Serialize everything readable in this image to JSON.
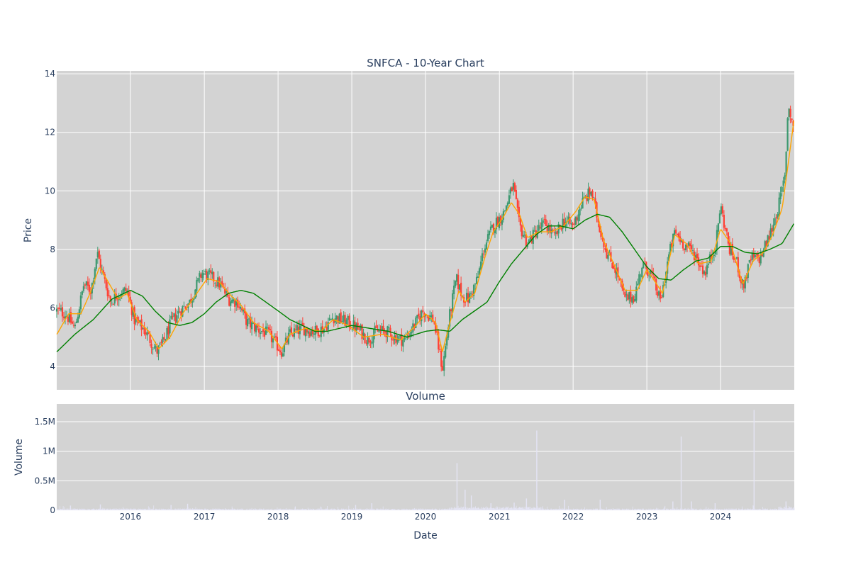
{
  "chart_data": [
    {
      "type": "candlestick",
      "title": "SNFCA - 10-Year Chart",
      "ylabel": "Price",
      "xlim": [
        "2015-01-01",
        "2024-12-31"
      ],
      "ylim": [
        3.2,
        14.1
      ],
      "y_ticks": [
        4,
        6,
        8,
        10,
        12,
        14
      ],
      "grid": true,
      "up_color": "#3d9970",
      "down_color": "#ff4136",
      "plot_background": "#d3d3d3",
      "approx_close_path": [
        [
          "2015-01-02",
          5.9
        ],
        [
          "2015-02-15",
          5.8
        ],
        [
          "2015-04-01",
          5.3
        ],
        [
          "2015-05-15",
          6.8
        ],
        [
          "2015-06-20",
          6.6
        ],
        [
          "2015-07-20",
          7.9
        ],
        [
          "2015-08-15",
          7.2
        ],
        [
          "2015-09-25",
          6.2
        ],
        [
          "2015-11-01",
          6.5
        ],
        [
          "2015-12-15",
          6.6
        ],
        [
          "2016-01-20",
          5.6
        ],
        [
          "2016-03-15",
          5.2
        ],
        [
          "2016-05-10",
          4.5
        ],
        [
          "2016-06-10",
          4.8
        ],
        [
          "2016-07-20",
          5.5
        ],
        [
          "2016-09-01",
          5.9
        ],
        [
          "2016-10-20",
          6.2
        ],
        [
          "2016-12-20",
          7.2
        ],
        [
          "2017-02-15",
          7.0
        ],
        [
          "2017-03-20",
          6.8
        ],
        [
          "2017-05-01",
          6.3
        ],
        [
          "2017-06-15",
          6.2
        ],
        [
          "2017-08-01",
          5.5
        ],
        [
          "2017-09-15",
          5.3
        ],
        [
          "2017-11-15",
          5.1
        ],
        [
          "2018-01-20",
          4.5
        ],
        [
          "2018-03-01",
          5.1
        ],
        [
          "2018-05-01",
          5.3
        ],
        [
          "2018-07-01",
          5.2
        ],
        [
          "2018-08-15",
          5.3
        ],
        [
          "2018-10-01",
          5.7
        ],
        [
          "2018-12-15",
          5.5
        ],
        [
          "2019-02-15",
          5.2
        ],
        [
          "2019-03-20",
          4.9
        ],
        [
          "2019-05-01",
          5.2
        ],
        [
          "2019-06-20",
          5.2
        ],
        [
          "2019-08-01",
          5.0
        ],
        [
          "2019-09-20",
          4.9
        ],
        [
          "2019-11-15",
          5.5
        ],
        [
          "2019-12-20",
          5.9
        ],
        [
          "2020-02-10",
          5.6
        ],
        [
          "2020-03-25",
          3.9
        ],
        [
          "2020-05-01",
          5.8
        ],
        [
          "2020-06-01",
          7.0
        ],
        [
          "2020-07-01",
          6.4
        ],
        [
          "2020-08-01",
          6.3
        ],
        [
          "2020-09-15",
          7.0
        ],
        [
          "2020-10-15",
          8.0
        ],
        [
          "2020-12-01",
          8.8
        ],
        [
          "2021-01-20",
          9.2
        ],
        [
          "2021-03-10",
          10.2
        ],
        [
          "2021-04-10",
          8.8
        ],
        [
          "2021-05-20",
          8.2
        ],
        [
          "2021-07-01",
          8.6
        ],
        [
          "2021-08-15",
          8.9
        ],
        [
          "2021-10-01",
          8.4
        ],
        [
          "2021-11-15",
          9.0
        ],
        [
          "2021-12-31",
          8.8
        ],
        [
          "2022-02-15",
          9.6
        ],
        [
          "2022-04-01",
          10.0
        ],
        [
          "2022-05-10",
          8.8
        ],
        [
          "2022-06-20",
          7.8
        ],
        [
          "2022-08-01",
          7.3
        ],
        [
          "2022-09-15",
          6.3
        ],
        [
          "2022-11-01",
          6.4
        ],
        [
          "2022-12-10",
          7.5
        ],
        [
          "2023-01-20",
          7.2
        ],
        [
          "2023-03-10",
          6.2
        ],
        [
          "2023-04-20",
          7.8
        ],
        [
          "2023-05-20",
          8.6
        ],
        [
          "2023-07-01",
          8.2
        ],
        [
          "2023-08-20",
          7.9
        ],
        [
          "2023-10-15",
          7.2
        ],
        [
          "2023-12-10",
          8.2
        ],
        [
          "2023-12-31",
          9.5
        ],
        [
          "2024-02-15",
          8.0
        ],
        [
          "2024-03-25",
          7.5
        ],
        [
          "2024-04-20",
          6.7
        ],
        [
          "2024-06-01",
          7.7
        ],
        [
          "2024-07-15",
          7.7
        ],
        [
          "2024-09-01",
          8.5
        ],
        [
          "2024-10-15",
          9.5
        ],
        [
          "2024-11-15",
          10.5
        ],
        [
          "2024-12-01",
          13.0
        ],
        [
          "2024-12-31",
          12.0
        ]
      ],
      "approx_short_ma_path": [
        [
          "2015-01-02",
          5.1
        ],
        [
          "2015-03-01",
          5.8
        ],
        [
          "2015-05-01",
          5.8
        ],
        [
          "2015-06-15",
          6.5
        ],
        [
          "2015-08-01",
          7.4
        ],
        [
          "2015-09-20",
          6.8
        ],
        [
          "2015-11-01",
          6.3
        ],
        [
          "2015-12-15",
          6.5
        ],
        [
          "2016-02-01",
          5.6
        ],
        [
          "2016-04-01",
          5.2
        ],
        [
          "2016-05-20",
          4.6
        ],
        [
          "2016-07-15",
          5.0
        ],
        [
          "2016-09-15",
          5.8
        ],
        [
          "2016-11-15",
          6.4
        ],
        [
          "2017-01-15",
          7.0
        ],
        [
          "2017-03-15",
          6.9
        ],
        [
          "2017-05-15",
          6.4
        ],
        [
          "2017-07-01",
          6.1
        ],
        [
          "2017-09-01",
          5.5
        ],
        [
          "2017-11-15",
          5.2
        ],
        [
          "2018-01-20",
          4.6
        ],
        [
          "2018-03-01",
          5.1
        ],
        [
          "2018-05-15",
          5.3
        ],
        [
          "2018-08-01",
          5.2
        ],
        [
          "2018-10-01",
          5.6
        ],
        [
          "2018-12-15",
          5.4
        ],
        [
          "2019-03-01",
          5.0
        ],
        [
          "2019-06-01",
          5.1
        ],
        [
          "2019-09-01",
          4.9
        ],
        [
          "2019-11-15",
          5.4
        ],
        [
          "2020-01-01",
          5.8
        ],
        [
          "2020-02-20",
          5.5
        ],
        [
          "2020-03-25",
          4.5
        ],
        [
          "2020-05-01",
          5.5
        ],
        [
          "2020-06-15",
          6.6
        ],
        [
          "2020-07-15",
          6.2
        ],
        [
          "2020-09-01",
          6.5
        ],
        [
          "2020-10-20",
          7.7
        ],
        [
          "2020-12-01",
          8.6
        ],
        [
          "2021-01-20",
          9.1
        ],
        [
          "2021-03-01",
          9.6
        ],
        [
          "2021-04-10",
          9.2
        ],
        [
          "2021-05-20",
          8.4
        ],
        [
          "2021-07-15",
          8.6
        ],
        [
          "2021-09-15",
          8.6
        ],
        [
          "2021-11-15",
          8.8
        ],
        [
          "2022-01-15",
          9.3
        ],
        [
          "2022-03-01",
          9.8
        ],
        [
          "2022-04-15",
          9.7
        ],
        [
          "2022-06-01",
          8.3
        ],
        [
          "2022-07-15",
          7.6
        ],
        [
          "2022-09-15",
          6.6
        ],
        [
          "2022-11-15",
          6.6
        ],
        [
          "2022-12-31",
          7.3
        ],
        [
          "2023-02-01",
          7.0
        ],
        [
          "2023-03-20",
          6.5
        ],
        [
          "2023-04-20",
          7.6
        ],
        [
          "2023-05-20",
          8.5
        ],
        [
          "2023-07-15",
          8.2
        ],
        [
          "2023-09-15",
          7.5
        ],
        [
          "2023-11-15",
          7.6
        ],
        [
          "2024-01-01",
          8.7
        ],
        [
          "2024-02-20",
          8.2
        ],
        [
          "2024-04-20",
          6.8
        ],
        [
          "2024-06-10",
          7.6
        ],
        [
          "2024-08-01",
          7.9
        ],
        [
          "2024-09-15",
          8.5
        ],
        [
          "2024-11-01",
          9.4
        ],
        [
          "2024-12-10",
          11.4
        ],
        [
          "2024-12-31",
          12.5
        ]
      ],
      "approx_long_ma_path": [
        [
          "2015-01-02",
          4.5
        ],
        [
          "2015-04-01",
          5.1
        ],
        [
          "2015-07-01",
          5.6
        ],
        [
          "2015-10-01",
          6.3
        ],
        [
          "2016-01-01",
          6.6
        ],
        [
          "2016-03-01",
          6.4
        ],
        [
          "2016-05-01",
          5.9
        ],
        [
          "2016-07-01",
          5.5
        ],
        [
          "2016-09-01",
          5.4
        ],
        [
          "2016-11-01",
          5.5
        ],
        [
          "2017-01-01",
          5.8
        ],
        [
          "2017-03-01",
          6.2
        ],
        [
          "2017-05-01",
          6.5
        ],
        [
          "2017-07-01",
          6.6
        ],
        [
          "2017-09-01",
          6.5
        ],
        [
          "2017-11-01",
          6.2
        ],
        [
          "2018-01-01",
          5.9
        ],
        [
          "2018-03-01",
          5.6
        ],
        [
          "2018-05-01",
          5.4
        ],
        [
          "2018-07-01",
          5.2
        ],
        [
          "2018-09-01",
          5.2
        ],
        [
          "2018-11-01",
          5.3
        ],
        [
          "2019-01-01",
          5.4
        ],
        [
          "2019-04-01",
          5.3
        ],
        [
          "2019-07-01",
          5.2
        ],
        [
          "2019-10-01",
          5.0
        ],
        [
          "2020-01-01",
          5.2
        ],
        [
          "2020-03-01",
          5.25
        ],
        [
          "2020-05-01",
          5.2
        ],
        [
          "2020-07-01",
          5.6
        ],
        [
          "2020-09-01",
          5.9
        ],
        [
          "2020-11-01",
          6.2
        ],
        [
          "2021-01-01",
          6.9
        ],
        [
          "2021-03-01",
          7.5
        ],
        [
          "2021-05-01",
          8.0
        ],
        [
          "2021-07-01",
          8.5
        ],
        [
          "2021-09-01",
          8.8
        ],
        [
          "2021-11-01",
          8.8
        ],
        [
          "2022-01-01",
          8.7
        ],
        [
          "2022-03-01",
          9.0
        ],
        [
          "2022-05-01",
          9.2
        ],
        [
          "2022-07-01",
          9.1
        ],
        [
          "2022-09-01",
          8.6
        ],
        [
          "2022-11-01",
          8.0
        ],
        [
          "2023-01-01",
          7.4
        ],
        [
          "2023-03-01",
          7.0
        ],
        [
          "2023-05-01",
          6.95
        ],
        [
          "2023-07-01",
          7.3
        ],
        [
          "2023-09-01",
          7.6
        ],
        [
          "2023-11-01",
          7.7
        ],
        [
          "2024-01-01",
          8.1
        ],
        [
          "2024-03-01",
          8.1
        ],
        [
          "2024-05-01",
          7.9
        ],
        [
          "2024-07-01",
          7.85
        ],
        [
          "2024-09-01",
          8.0
        ],
        [
          "2024-11-01",
          8.2
        ],
        [
          "2024-12-31",
          8.9
        ]
      ],
      "short_ma_color": "#ffa500",
      "long_ma_color": "#008000"
    },
    {
      "type": "bar",
      "title": "Volume",
      "xlabel": "Date",
      "ylabel": "Volume",
      "xlim": [
        "2015-01-01",
        "2024-12-31"
      ],
      "ylim": [
        0,
        1800000
      ],
      "y_ticks": [
        0,
        500000,
        1000000,
        1500000
      ],
      "y_tick_labels": [
        "0",
        "0.5M",
        "1M",
        "1.5M"
      ],
      "x_ticks": [
        "2016",
        "2017",
        "2018",
        "2019",
        "2020",
        "2021",
        "2022",
        "2023",
        "2024"
      ],
      "grid": true,
      "bar_color": "#e4e4f4",
      "plot_background": "#d3d3d3",
      "notable_spikes": [
        [
          "2015-03-10",
          80000
        ],
        [
          "2015-08-05",
          100000
        ],
        [
          "2016-07-20",
          90000
        ],
        [
          "2016-10-10",
          110000
        ],
        [
          "2019-01-20",
          90000
        ],
        [
          "2019-04-10",
          120000
        ],
        [
          "2020-06-05",
          800000
        ],
        [
          "2020-07-15",
          350000
        ],
        [
          "2020-08-15",
          250000
        ],
        [
          "2020-11-20",
          120000
        ],
        [
          "2021-03-15",
          130000
        ],
        [
          "2021-05-15",
          200000
        ],
        [
          "2021-07-05",
          1350000
        ],
        [
          "2021-11-20",
          180000
        ],
        [
          "2022-05-15",
          180000
        ],
        [
          "2023-05-10",
          150000
        ],
        [
          "2023-06-20",
          1250000
        ],
        [
          "2023-08-10",
          150000
        ],
        [
          "2023-12-05",
          120000
        ],
        [
          "2024-06-15",
          1700000
        ],
        [
          "2024-11-20",
          150000
        ]
      ]
    }
  ]
}
